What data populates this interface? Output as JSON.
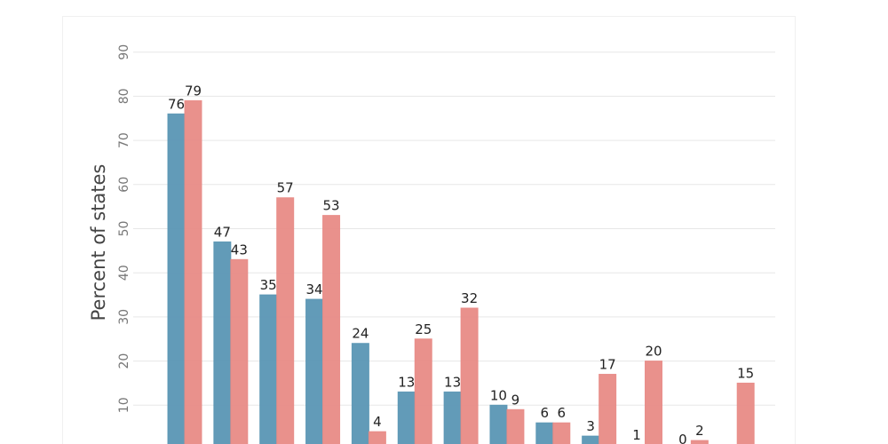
{
  "chart_data": {
    "type": "bar",
    "title": "",
    "xlabel": "",
    "ylabel": "Percent of states",
    "ylim": [
      0,
      90
    ],
    "yticks": [
      10,
      20,
      30,
      40,
      50,
      60,
      70,
      80,
      90
    ],
    "grid": true,
    "colors": {
      "series_a": "#5a96b4",
      "series_b": "#e88b86"
    },
    "groups": [
      {
        "a": 76,
        "b": 79
      },
      {
        "a": 47,
        "b": 43
      },
      {
        "a": 35,
        "b": 57
      },
      {
        "a": 34,
        "b": 53
      },
      {
        "a": 24,
        "b": 4
      },
      {
        "a": 13,
        "b": 25
      },
      {
        "a": 13,
        "b": 32
      },
      {
        "a": 10,
        "b": 9
      },
      {
        "a": 6,
        "b": 6
      },
      {
        "a": 3,
        "b": 17
      },
      {
        "a": 1,
        "b": 20
      },
      {
        "a": 0,
        "b": 2
      },
      {
        "a": null,
        "b": 15
      }
    ]
  }
}
